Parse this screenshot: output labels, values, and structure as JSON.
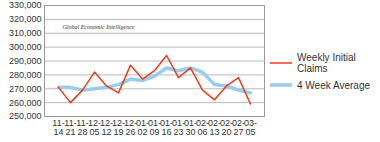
{
  "chart_data": {
    "type": "line",
    "annotations": [
      "Global Economic Intelligence"
    ],
    "categories": [
      "11-14",
      "11-21",
      "11-28",
      "12-05",
      "12-12",
      "12-19",
      "12-26",
      "01-02",
      "01-09",
      "01-16",
      "01-23",
      "01-30",
      "02-06",
      "02-13",
      "02-20",
      "02-27",
      "03-05"
    ],
    "series": [
      {
        "name": "Weekly Initial Claims",
        "color": "#e8401c",
        "values": [
          271000,
          260000,
          269000,
          282000,
          272000,
          267000,
          287000,
          277000,
          283000,
          294000,
          278000,
          285000,
          269000,
          262000,
          272000,
          278000,
          259000
        ]
      },
      {
        "name": "4 Week Average",
        "color": "#99ccee",
        "values": [
          271000,
          271000,
          269000,
          270000,
          271000,
          273000,
          277000,
          276000,
          279000,
          285000,
          283000,
          285000,
          282000,
          273000,
          272000,
          269000,
          267000
        ]
      }
    ],
    "ylim": [
      250000,
      330000
    ],
    "yticks": [
      {
        "value": 250000,
        "label": "250,000"
      },
      {
        "value": 260000,
        "label": "260,000"
      },
      {
        "value": 270000,
        "label": "270,000"
      },
      {
        "value": 280000,
        "label": "280,000"
      },
      {
        "value": 290000,
        "label": "290,000"
      },
      {
        "value": 300000,
        "label": "300,000"
      },
      {
        "value": 310000,
        "label": "310,000"
      },
      {
        "value": 320000,
        "label": "320,000"
      },
      {
        "value": 330000,
        "label": "330,000"
      }
    ],
    "grid": true,
    "legend": "right"
  }
}
